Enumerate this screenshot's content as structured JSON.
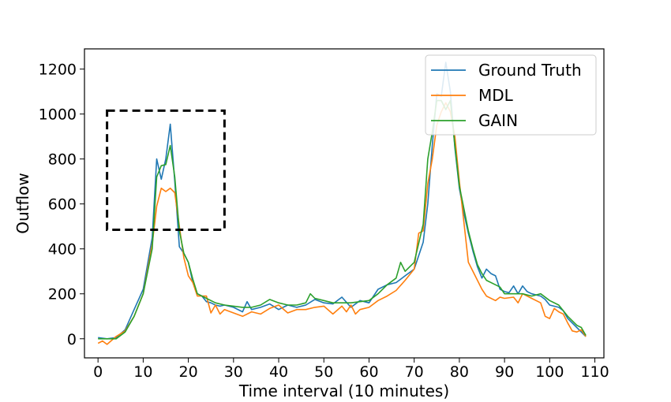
{
  "chart_data": {
    "type": "line",
    "title": "",
    "xlabel": "Time interval (10 minutes)",
    "ylabel": "Outflow",
    "xlim": [
      -3,
      112
    ],
    "ylim": [
      -85,
      1290
    ],
    "xticks": [
      0,
      10,
      20,
      30,
      40,
      50,
      60,
      70,
      80,
      90,
      100,
      110
    ],
    "yticks": [
      0,
      200,
      400,
      600,
      800,
      1000,
      1200
    ],
    "grid": false,
    "legend_position": "top-right",
    "annotation": {
      "shape": "dashed-rectangle",
      "x_range": [
        2,
        28
      ],
      "y_range": [
        485,
        1015
      ]
    },
    "series": [
      {
        "name": "Ground Truth",
        "color": "#1f77b4",
        "points": [
          [
            0,
            5
          ],
          [
            2,
            0
          ],
          [
            4,
            5
          ],
          [
            6,
            40
          ],
          [
            8,
            130
          ],
          [
            10,
            220
          ],
          [
            12,
            450
          ],
          [
            13,
            800
          ],
          [
            14,
            710
          ],
          [
            15,
            800
          ],
          [
            16,
            955
          ],
          [
            17,
            700
          ],
          [
            18,
            410
          ],
          [
            19,
            380
          ],
          [
            20,
            340
          ],
          [
            21,
            250
          ],
          [
            22,
            200
          ],
          [
            23,
            190
          ],
          [
            24,
            165
          ],
          [
            25,
            160
          ],
          [
            26,
            150
          ],
          [
            27,
            145
          ],
          [
            28,
            150
          ],
          [
            30,
            140
          ],
          [
            32,
            120
          ],
          [
            33,
            165
          ],
          [
            34,
            130
          ],
          [
            36,
            140
          ],
          [
            38,
            155
          ],
          [
            40,
            130
          ],
          [
            42,
            150
          ],
          [
            44,
            140
          ],
          [
            46,
            150
          ],
          [
            48,
            175
          ],
          [
            50,
            160
          ],
          [
            52,
            155
          ],
          [
            54,
            185
          ],
          [
            56,
            140
          ],
          [
            58,
            170
          ],
          [
            60,
            160
          ],
          [
            62,
            220
          ],
          [
            64,
            240
          ],
          [
            66,
            250
          ],
          [
            68,
            280
          ],
          [
            70,
            310
          ],
          [
            72,
            430
          ],
          [
            73,
            600
          ],
          [
            74,
            860
          ],
          [
            75,
            1090
          ],
          [
            76,
            1080
          ],
          [
            77,
            1230
          ],
          [
            78,
            1100
          ],
          [
            79,
            850
          ],
          [
            80,
            670
          ],
          [
            81,
            560
          ],
          [
            82,
            470
          ],
          [
            83,
            390
          ],
          [
            84,
            320
          ],
          [
            85,
            270
          ],
          [
            86,
            310
          ],
          [
            87,
            290
          ],
          [
            88,
            280
          ],
          [
            89,
            220
          ],
          [
            90,
            210
          ],
          [
            91,
            205
          ],
          [
            92,
            235
          ],
          [
            93,
            200
          ],
          [
            94,
            235
          ],
          [
            95,
            210
          ],
          [
            96,
            200
          ],
          [
            98,
            190
          ],
          [
            99,
            175
          ],
          [
            100,
            150
          ],
          [
            102,
            140
          ],
          [
            103,
            125
          ],
          [
            104,
            90
          ],
          [
            106,
            50
          ],
          [
            108,
            10
          ]
        ]
      },
      {
        "name": "MDL",
        "color": "#ff7f0e",
        "points": [
          [
            0,
            -20
          ],
          [
            1,
            -10
          ],
          [
            2,
            -25
          ],
          [
            4,
            10
          ],
          [
            6,
            35
          ],
          [
            8,
            100
          ],
          [
            10,
            200
          ],
          [
            12,
            420
          ],
          [
            13,
            590
          ],
          [
            14,
            670
          ],
          [
            15,
            655
          ],
          [
            16,
            670
          ],
          [
            17,
            650
          ],
          [
            18,
            500
          ],
          [
            19,
            360
          ],
          [
            20,
            280
          ],
          [
            21,
            250
          ],
          [
            22,
            190
          ],
          [
            24,
            190
          ],
          [
            25,
            115
          ],
          [
            26,
            150
          ],
          [
            27,
            110
          ],
          [
            28,
            130
          ],
          [
            30,
            115
          ],
          [
            32,
            100
          ],
          [
            34,
            120
          ],
          [
            36,
            110
          ],
          [
            38,
            135
          ],
          [
            40,
            150
          ],
          [
            42,
            115
          ],
          [
            44,
            130
          ],
          [
            46,
            130
          ],
          [
            48,
            140
          ],
          [
            50,
            145
          ],
          [
            52,
            110
          ],
          [
            54,
            145
          ],
          [
            55,
            120
          ],
          [
            56,
            150
          ],
          [
            57,
            110
          ],
          [
            58,
            130
          ],
          [
            60,
            140
          ],
          [
            62,
            170
          ],
          [
            64,
            190
          ],
          [
            66,
            215
          ],
          [
            68,
            260
          ],
          [
            70,
            310
          ],
          [
            71,
            470
          ],
          [
            72,
            480
          ],
          [
            73,
            690
          ],
          [
            74,
            800
          ],
          [
            75,
            950
          ],
          [
            76,
            1010
          ],
          [
            77,
            1050
          ],
          [
            78,
            1010
          ],
          [
            79,
            900
          ],
          [
            80,
            700
          ],
          [
            81,
            520
          ],
          [
            82,
            340
          ],
          [
            83,
            300
          ],
          [
            84,
            260
          ],
          [
            85,
            220
          ],
          [
            86,
            190
          ],
          [
            88,
            170
          ],
          [
            89,
            185
          ],
          [
            90,
            180
          ],
          [
            92,
            185
          ],
          [
            93,
            160
          ],
          [
            94,
            200
          ],
          [
            96,
            180
          ],
          [
            98,
            160
          ],
          [
            99,
            100
          ],
          [
            100,
            90
          ],
          [
            101,
            135
          ],
          [
            102,
            120
          ],
          [
            103,
            110
          ],
          [
            104,
            70
          ],
          [
            105,
            35
          ],
          [
            106,
            30
          ],
          [
            107,
            40
          ],
          [
            108,
            10
          ]
        ]
      },
      {
        "name": "GAIN",
        "color": "#2ca02c",
        "points": [
          [
            0,
            0
          ],
          [
            2,
            0
          ],
          [
            4,
            0
          ],
          [
            6,
            30
          ],
          [
            8,
            100
          ],
          [
            10,
            200
          ],
          [
            12,
            400
          ],
          [
            13,
            720
          ],
          [
            14,
            770
          ],
          [
            15,
            775
          ],
          [
            16,
            860
          ],
          [
            17,
            720
          ],
          [
            18,
            480
          ],
          [
            19,
            380
          ],
          [
            20,
            340
          ],
          [
            21,
            265
          ],
          [
            22,
            200
          ],
          [
            24,
            180
          ],
          [
            26,
            160
          ],
          [
            28,
            150
          ],
          [
            30,
            145
          ],
          [
            32,
            140
          ],
          [
            34,
            140
          ],
          [
            36,
            150
          ],
          [
            38,
            175
          ],
          [
            40,
            160
          ],
          [
            42,
            150
          ],
          [
            44,
            150
          ],
          [
            46,
            160
          ],
          [
            47,
            200
          ],
          [
            48,
            180
          ],
          [
            50,
            170
          ],
          [
            52,
            160
          ],
          [
            54,
            160
          ],
          [
            56,
            160
          ],
          [
            58,
            165
          ],
          [
            60,
            170
          ],
          [
            62,
            200
          ],
          [
            64,
            240
          ],
          [
            66,
            270
          ],
          [
            67,
            340
          ],
          [
            68,
            300
          ],
          [
            70,
            340
          ],
          [
            72,
            510
          ],
          [
            73,
            800
          ],
          [
            74,
            920
          ],
          [
            75,
            1060
          ],
          [
            76,
            1060
          ],
          [
            77,
            1020
          ],
          [
            78,
            1060
          ],
          [
            79,
            860
          ],
          [
            80,
            680
          ],
          [
            82,
            480
          ],
          [
            83,
            400
          ],
          [
            84,
            330
          ],
          [
            85,
            290
          ],
          [
            86,
            260
          ],
          [
            88,
            240
          ],
          [
            89,
            230
          ],
          [
            90,
            200
          ],
          [
            92,
            200
          ],
          [
            94,
            200
          ],
          [
            96,
            190
          ],
          [
            98,
            200
          ],
          [
            100,
            170
          ],
          [
            102,
            150
          ],
          [
            104,
            100
          ],
          [
            106,
            60
          ],
          [
            107,
            50
          ],
          [
            108,
            15
          ]
        ]
      }
    ]
  }
}
